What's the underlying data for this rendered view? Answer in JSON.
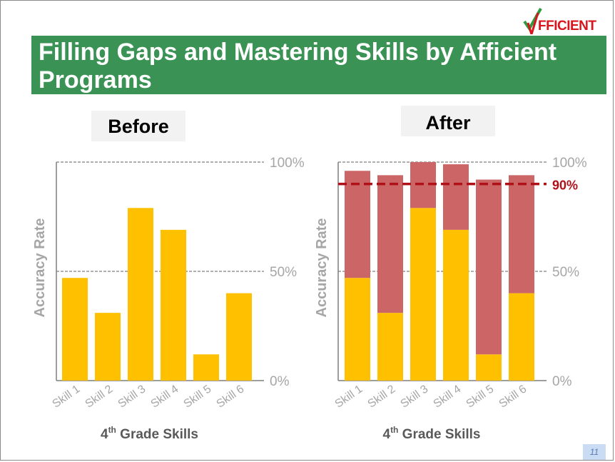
{
  "logo": {
    "text": "FFICIENT",
    "colors": {
      "check": "#2e9b3e",
      "text": "#d8141c"
    }
  },
  "title": "Filling Gaps and Mastering Skills by Afficient Programs",
  "page_number": "11",
  "colors": {
    "before_bar": "#ffc000",
    "gap_bar": "#cc6666",
    "target_line": "#b01018",
    "title_bg": "#3a9254",
    "axis_text": "#a6a6a6"
  },
  "chart_data": [
    {
      "type": "bar",
      "panel_label": "Before",
      "categories": [
        "Skill 1",
        "Skill 2",
        "Skill 3",
        "Skill 4",
        "Skill 5",
        "Skill 6"
      ],
      "series": [
        {
          "values": [
            47,
            31,
            79,
            69,
            12,
            40
          ]
        }
      ],
      "xlabel": "th Grade Skills",
      "xlabel_prefix": "4",
      "ylabel": "Accuracy Rate",
      "ylim": [
        0,
        100
      ],
      "yticks": [
        "0%",
        "50%",
        "100%"
      ],
      "grid": "dashed at 50% and 100%"
    },
    {
      "type": "bar",
      "stacked": true,
      "panel_label": "After",
      "categories": [
        "Skill 1",
        "Skill 2",
        "Skill 3",
        "Skill 4",
        "Skill 5",
        "Skill 6"
      ],
      "series": [
        {
          "values": [
            47,
            31,
            79,
            69,
            12,
            40
          ]
        },
        {
          "values": [
            49,
            63,
            21,
            30,
            80,
            54
          ]
        }
      ],
      "totals": [
        96,
        94,
        100,
        99,
        92,
        94
      ],
      "target_line": {
        "value": 90,
        "label": "90%"
      },
      "xlabel": "th Grade Skills",
      "xlabel_prefix": "4",
      "ylabel": "Accuracy Rate",
      "ylim": [
        0,
        100
      ],
      "yticks": [
        "0%",
        "50%",
        "100%"
      ],
      "grid": "dashed at 50% and 100%"
    }
  ]
}
